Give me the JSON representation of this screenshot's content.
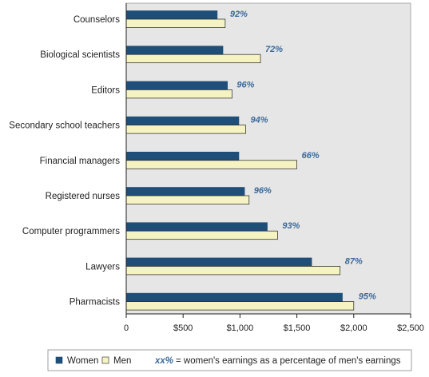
{
  "chart_data": {
    "type": "bar",
    "orientation": "horizontal",
    "categories": [
      "Counselors",
      "Biological scientists",
      "Editors",
      "Secondary school teachers",
      "Financial managers",
      "Registered nurses",
      "Computer programmers",
      "Lawyers",
      "Pharmacists"
    ],
    "series": [
      {
        "name": "Women",
        "values": [
          800,
          850,
          890,
          990,
          990,
          1040,
          1240,
          1630,
          1900
        ]
      },
      {
        "name": "Men",
        "values": [
          870,
          1180,
          930,
          1050,
          1500,
          1080,
          1330,
          1880,
          2000
        ]
      }
    ],
    "percent_labels": [
      "92%",
      "72%",
      "96%",
      "94%",
      "66%",
      "96%",
      "93%",
      "87%",
      "95%"
    ],
    "x_ticks": [
      "0",
      "$500",
      "$1,000",
      "$1,500",
      "$2,000",
      "$2,500"
    ],
    "x_tick_values": [
      0,
      500,
      1000,
      1500,
      2000,
      2500
    ],
    "xlim": [
      0,
      2500
    ],
    "grid": false,
    "legend_position": "bottom",
    "legend": {
      "women_label": "Women",
      "men_label": "Men",
      "pct_key": "xx%",
      "pct_text": "= women's earnings as a percentage of men's earnings"
    },
    "colors": {
      "women": "#1f4e79",
      "men": "#f5f3c2",
      "plot_bg": "#e6e6e6",
      "pct": "#3a6a9a",
      "outline": "#222222"
    }
  }
}
